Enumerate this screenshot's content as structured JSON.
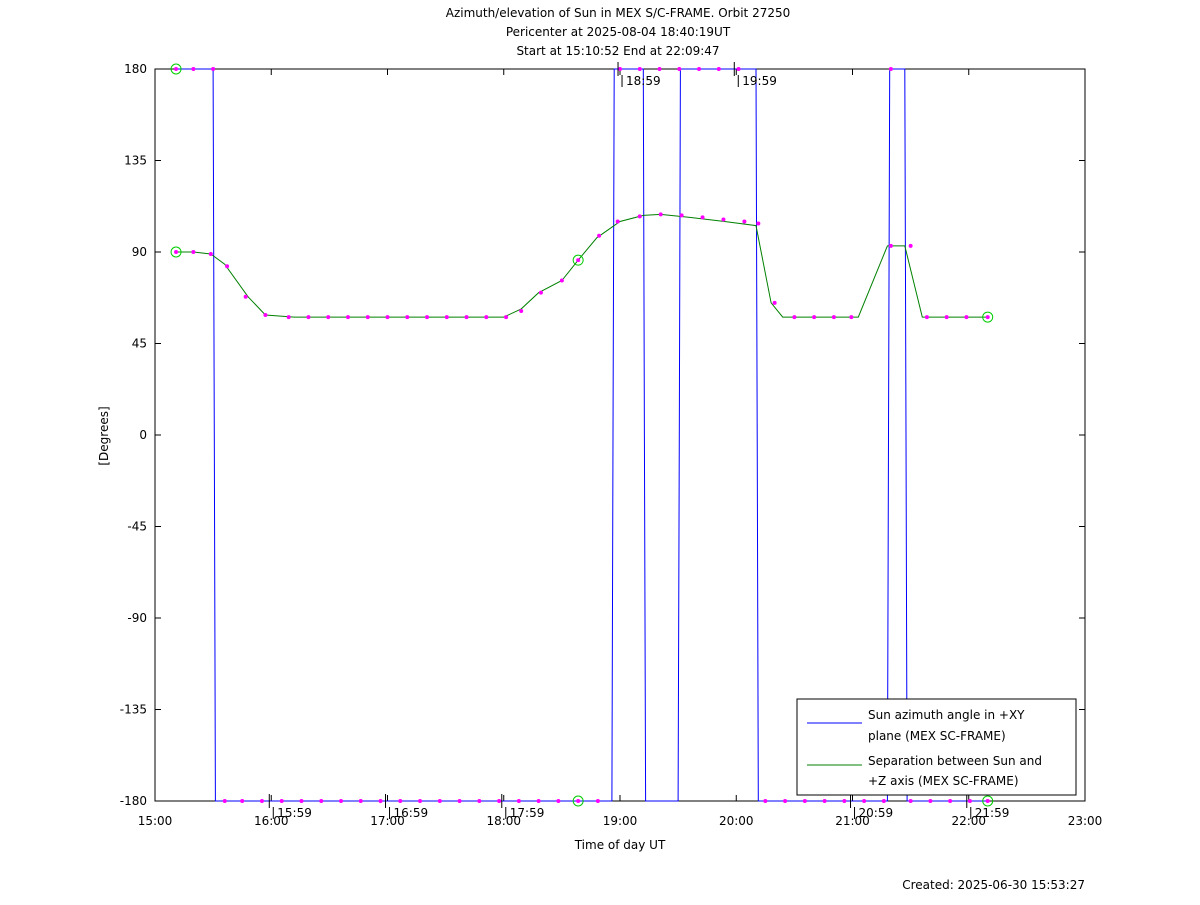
{
  "chart_data": {
    "type": "line",
    "title": "Azimuth/elevation of Sun in MEX S/C-FRAME.  Orbit 27250",
    "subtitle_lines": [
      "Pericenter at 2025-08-04 18:40:19UT",
      "Start at 15:10:52 End at 22:09:47"
    ],
    "xlabel": "Time of day UT",
    "ylabel": "[Degrees]",
    "footer": "Created: 2025-06-30 15:53:27",
    "xlim": [
      15.0,
      23.0
    ],
    "ylim": [
      -180,
      180
    ],
    "x_ticks": [
      {
        "value": 15.0,
        "label": "15:00"
      },
      {
        "value": 16.0,
        "label": "16:00"
      },
      {
        "value": 17.0,
        "label": "17:00"
      },
      {
        "value": 18.0,
        "label": "18:00"
      },
      {
        "value": 19.0,
        "label": "19:00"
      },
      {
        "value": 20.0,
        "label": "20:00"
      },
      {
        "value": 21.0,
        "label": "21:00"
      },
      {
        "value": 22.0,
        "label": "22:00"
      },
      {
        "value": 23.0,
        "label": "23:00"
      }
    ],
    "y_ticks": [
      {
        "value": 180,
        "label": "180"
      },
      {
        "value": 135,
        "label": "135"
      },
      {
        "value": 90,
        "label": "90"
      },
      {
        "value": 45,
        "label": "45"
      },
      {
        "value": 0,
        "label": "0"
      },
      {
        "value": -45,
        "label": "-45"
      },
      {
        "value": -90,
        "label": "-90"
      },
      {
        "value": -135,
        "label": "-135"
      },
      {
        "value": -180,
        "label": "-180"
      }
    ],
    "hour_markers": [
      {
        "x": 15.983,
        "y": -180,
        "label": "15:59"
      },
      {
        "x": 16.983,
        "y": -180,
        "label": "16:59"
      },
      {
        "x": 17.983,
        "y": -180,
        "label": "17:59"
      },
      {
        "x": 18.983,
        "y": 180,
        "label": "18:59"
      },
      {
        "x": 19.983,
        "y": 180,
        "label": "19:59"
      },
      {
        "x": 20.983,
        "y": -180,
        "label": "20:59"
      },
      {
        "x": 21.983,
        "y": -180,
        "label": "21:59"
      }
    ],
    "legend_position": "bottom-right",
    "series": [
      {
        "name": "Sun azimuth angle in +XY plane (MEX SC-FRAME)",
        "legend_lines": [
          "Sun azimuth angle in +XY",
          "plane (MEX SC-FRAME)"
        ],
        "color": "#0000ff",
        "x": [
          15.181,
          15.33,
          15.5,
          15.51,
          15.52,
          15.53,
          15.6,
          15.8,
          16.0,
          16.5,
          17.0,
          17.5,
          18.0,
          18.5,
          18.64,
          18.7,
          18.93,
          18.94,
          18.95,
          19.2,
          19.21,
          19.22,
          19.5,
          19.51,
          19.52,
          19.8,
          20.17,
          20.18,
          20.19,
          20.5,
          20.9,
          21.3,
          21.31,
          21.32,
          21.45,
          21.46,
          21.47,
          21.8,
          22.163
        ],
        "y": [
          180,
          180,
          180,
          0,
          -180,
          -180,
          -180,
          -180,
          -180,
          -180,
          -180,
          -180,
          -180,
          -180,
          -180,
          -180,
          -180,
          0,
          180,
          180,
          0,
          -180,
          -180,
          0,
          180,
          180,
          180,
          0,
          -180,
          -180,
          -180,
          -180,
          0,
          180,
          180,
          0,
          -180,
          -180,
          -180
        ]
      },
      {
        "name": "Separation between Sun and +Z axis (MEX SC-FRAME)",
        "legend_lines": [
          "Separation between Sun and",
          "+Z axis (MEX SC-FRAME)"
        ],
        "color": "#008000",
        "x": [
          15.181,
          15.33,
          15.48,
          15.6,
          15.8,
          15.95,
          16.2,
          16.5,
          17.0,
          17.5,
          18.0,
          18.15,
          18.3,
          18.5,
          18.64,
          18.8,
          19.0,
          19.2,
          19.35,
          19.6,
          19.9,
          20.17,
          20.3,
          20.4,
          20.6,
          20.9,
          21.05,
          21.3,
          21.45,
          21.6,
          21.8,
          22.163
        ],
        "y": [
          90,
          90,
          89,
          84,
          68,
          59,
          58,
          58,
          58,
          58,
          58,
          62,
          70,
          76,
          86,
          97,
          105,
          108,
          108.5,
          107,
          105,
          103,
          65,
          58,
          58,
          58,
          58,
          93,
          93,
          58,
          58,
          58
        ]
      }
    ],
    "marker_points": [
      [
        15.181,
        180
      ],
      [
        15.33,
        180
      ],
      [
        15.5,
        180
      ],
      [
        15.181,
        90
      ],
      [
        15.33,
        90
      ],
      [
        15.48,
        89
      ],
      [
        15.62,
        83
      ],
      [
        15.78,
        68
      ],
      [
        15.95,
        59
      ],
      [
        16.15,
        58
      ],
      [
        16.32,
        58
      ],
      [
        16.49,
        58
      ],
      [
        16.66,
        58
      ],
      [
        16.83,
        58
      ],
      [
        17.0,
        58
      ],
      [
        17.17,
        58
      ],
      [
        17.34,
        58
      ],
      [
        17.51,
        58
      ],
      [
        17.68,
        58
      ],
      [
        17.85,
        58
      ],
      [
        18.02,
        58
      ],
      [
        18.15,
        61
      ],
      [
        18.32,
        70
      ],
      [
        18.5,
        76
      ],
      [
        18.64,
        86
      ],
      [
        18.82,
        98
      ],
      [
        18.98,
        105
      ],
      [
        19.17,
        107.5
      ],
      [
        19.35,
        108.5
      ],
      [
        19.53,
        108
      ],
      [
        19.71,
        107
      ],
      [
        19.89,
        106
      ],
      [
        20.07,
        105
      ],
      [
        20.19,
        104
      ],
      [
        20.33,
        65
      ],
      [
        20.5,
        58
      ],
      [
        20.67,
        58
      ],
      [
        20.84,
        58
      ],
      [
        20.99,
        58
      ],
      [
        21.33,
        93
      ],
      [
        21.5,
        93
      ],
      [
        21.64,
        58
      ],
      [
        21.81,
        58
      ],
      [
        21.98,
        58
      ],
      [
        22.163,
        58
      ],
      [
        15.6,
        -180
      ],
      [
        15.75,
        -180
      ],
      [
        15.92,
        -180
      ],
      [
        16.09,
        -180
      ],
      [
        16.26,
        -180
      ],
      [
        16.43,
        -180
      ],
      [
        16.6,
        -180
      ],
      [
        16.77,
        -180
      ],
      [
        16.94,
        -180
      ],
      [
        17.11,
        -180
      ],
      [
        17.28,
        -180
      ],
      [
        17.45,
        -180
      ],
      [
        17.62,
        -180
      ],
      [
        17.79,
        -180
      ],
      [
        17.96,
        -180
      ],
      [
        18.13,
        -180
      ],
      [
        18.3,
        -180
      ],
      [
        18.47,
        -180
      ],
      [
        18.64,
        -180
      ],
      [
        18.81,
        -180
      ],
      [
        19.0,
        180
      ],
      [
        19.17,
        180
      ],
      [
        19.34,
        180
      ],
      [
        19.51,
        180
      ],
      [
        19.68,
        180
      ],
      [
        19.85,
        180
      ],
      [
        20.02,
        180
      ],
      [
        20.25,
        -180
      ],
      [
        20.42,
        -180
      ],
      [
        20.59,
        -180
      ],
      [
        20.76,
        -180
      ],
      [
        20.93,
        -180
      ],
      [
        21.1,
        -180
      ],
      [
        21.27,
        -180
      ],
      [
        21.33,
        180
      ],
      [
        21.5,
        -180
      ],
      [
        21.67,
        -180
      ],
      [
        21.84,
        -180
      ],
      [
        22.01,
        -180
      ],
      [
        22.163,
        -180
      ]
    ],
    "circle_points": [
      [
        15.181,
        180
      ],
      [
        15.181,
        90
      ],
      [
        18.64,
        86
      ],
      [
        18.64,
        -180
      ],
      [
        22.163,
        58
      ],
      [
        22.163,
        -180
      ]
    ]
  }
}
